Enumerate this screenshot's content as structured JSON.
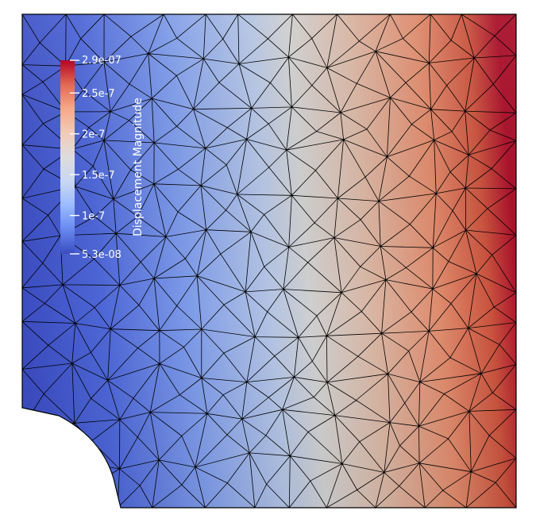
{
  "colorbar": {
    "title": "Displacement Magnitude",
    "range_min": 5.3e-08,
    "range_max": 2.9e-07,
    "max_label": "2.9e-07",
    "min_label": "5.3e-08",
    "ticks": [
      {
        "value": 2.5e-07,
        "label": "2.5e-7"
      },
      {
        "value": 2e-07,
        "label": "2e-7"
      },
      {
        "value": 1.5e-07,
        "label": "1.5e-7"
      },
      {
        "value": 1e-07,
        "label": "1e-7"
      }
    ],
    "colormap": [
      "#3b4cc0",
      "#6788ee",
      "#9abbff",
      "#c9d7f0",
      "#dddcdc",
      "#f2cbb7",
      "#f7a889",
      "#e26952",
      "#b40426"
    ]
  },
  "colors": {
    "mesh_lines": "#000000",
    "background": "#ffffff"
  }
}
